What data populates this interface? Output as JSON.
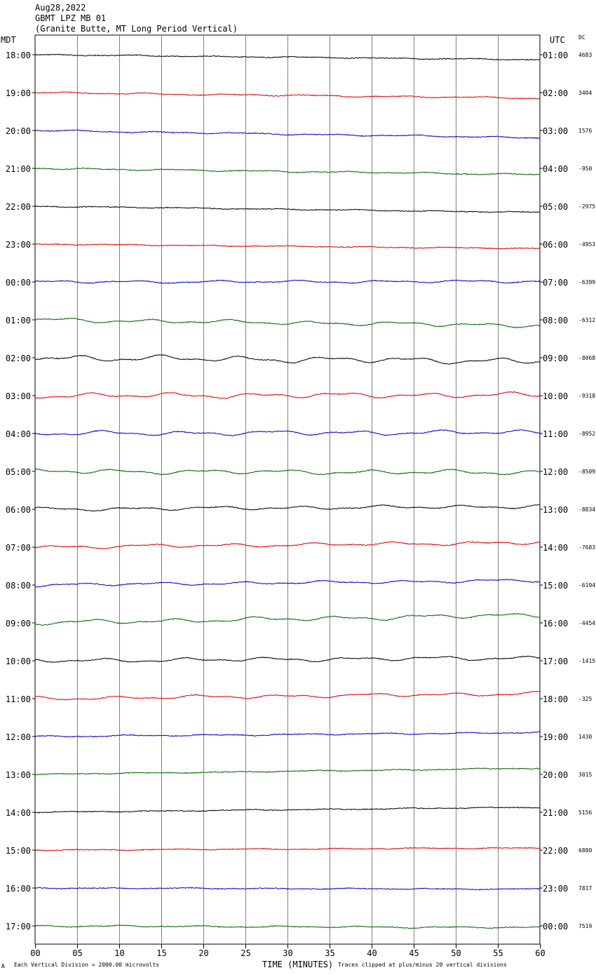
{
  "header": {
    "line1": "Aug28,2022",
    "line2": "GBMT LPZ MB 01",
    "line3": "(Granite Butte, MT Long Period Vertical)"
  },
  "left_axis_label": "MDT",
  "right_axis_label": "UTC",
  "dc_label": "DC",
  "footer": {
    "left_mark": "A",
    "scale_note": "Each Vertical Division = 2000.00 microvolts",
    "xlabel": "TIME (MINUTES)",
    "clip_note": "Traces clipped at plus/minus 20 vertical divisions"
  },
  "colors": {
    "black": "#000000",
    "red": "#dd0000",
    "blue": "#0000cc",
    "green": "#006600",
    "grid": "#808080"
  },
  "chart_data": {
    "type": "line",
    "title": "GBMT LPZ MB 01",
    "xlabel": "TIME (MINUTES)",
    "xlim": [
      0,
      60
    ],
    "x_ticks": [
      "00",
      "05",
      "10",
      "15",
      "20",
      "25",
      "30",
      "35",
      "40",
      "45",
      "50",
      "55",
      "60"
    ],
    "grid": "vertical lines every 5 minutes",
    "rows": [
      {
        "left": "18:00",
        "right": "01:00",
        "dc": "4683",
        "color": "black",
        "drift": -0.9,
        "wiggle": 0.1
      },
      {
        "left": "19:00",
        "right": "02:00",
        "dc": "3404",
        "color": "red",
        "drift": -1.0,
        "wiggle": 0.15
      },
      {
        "left": "20:00",
        "right": "03:00",
        "dc": "1576",
        "color": "blue",
        "drift": -1.3,
        "wiggle": 0.15
      },
      {
        "left": "21:00",
        "right": "04:00",
        "dc": "-950",
        "color": "green",
        "drift": -1.1,
        "wiggle": 0.15
      },
      {
        "left": "22:00",
        "right": "05:00",
        "dc": "-2975",
        "color": "black",
        "drift": -1.1,
        "wiggle": 0.1
      },
      {
        "left": "23:00",
        "right": "06:00",
        "dc": "-4953",
        "color": "red",
        "drift": -0.8,
        "wiggle": 0.1
      },
      {
        "left": "00:00",
        "right": "07:00",
        "dc": "-6399",
        "color": "blue",
        "drift": 0.1,
        "wiggle": 0.25
      },
      {
        "left": "01:00",
        "right": "08:00",
        "dc": "-6312",
        "color": "green",
        "drift": -1.0,
        "wiggle": 0.4
      },
      {
        "left": "02:00",
        "right": "09:00",
        "dc": "-8068",
        "color": "black",
        "drift": -0.6,
        "wiggle": 0.6
      },
      {
        "left": "03:00",
        "right": "10:00",
        "dc": "-9318",
        "color": "red",
        "drift": 0.1,
        "wiggle": 0.5
      },
      {
        "left": "04:00",
        "right": "11:00",
        "dc": "-8952",
        "color": "blue",
        "drift": 0.2,
        "wiggle": 0.45
      },
      {
        "left": "05:00",
        "right": "12:00",
        "dc": "-8509",
        "color": "green",
        "drift": -0.2,
        "wiggle": 0.45
      },
      {
        "left": "06:00",
        "right": "13:00",
        "dc": "-8834",
        "color": "black",
        "drift": 0.5,
        "wiggle": 0.35
      },
      {
        "left": "07:00",
        "right": "14:00",
        "dc": "-7683",
        "color": "red",
        "drift": 0.8,
        "wiggle": 0.35
      },
      {
        "left": "08:00",
        "right": "15:00",
        "dc": "-6194",
        "color": "blue",
        "drift": 0.8,
        "wiggle": 0.3
      },
      {
        "left": "09:00",
        "right": "16:00",
        "dc": "-4454",
        "color": "green",
        "drift": 1.4,
        "wiggle": 0.45
      },
      {
        "left": "10:00",
        "right": "17:00",
        "dc": "-1415",
        "color": "black",
        "drift": 0.5,
        "wiggle": 0.4
      },
      {
        "left": "11:00",
        "right": "18:00",
        "dc": "-325",
        "color": "red",
        "drift": 0.9,
        "wiggle": 0.35
      },
      {
        "left": "12:00",
        "right": "19:00",
        "dc": "1430",
        "color": "blue",
        "drift": 0.7,
        "wiggle": 0.15
      },
      {
        "left": "13:00",
        "right": "20:00",
        "dc": "3015",
        "color": "green",
        "drift": 1.1,
        "wiggle": 0.1
      },
      {
        "left": "14:00",
        "right": "21:00",
        "dc": "5156",
        "color": "black",
        "drift": 0.9,
        "wiggle": 0.1
      },
      {
        "left": "15:00",
        "right": "22:00",
        "dc": "6880",
        "color": "red",
        "drift": 0.4,
        "wiggle": 0.1
      },
      {
        "left": "16:00",
        "right": "23:00",
        "dc": "7817",
        "color": "blue",
        "drift": -0.2,
        "wiggle": 0.1
      },
      {
        "left": "17:00",
        "right": "00:00",
        "dc": "7519",
        "color": "green",
        "drift": -0.3,
        "wiggle": 0.15
      }
    ]
  }
}
